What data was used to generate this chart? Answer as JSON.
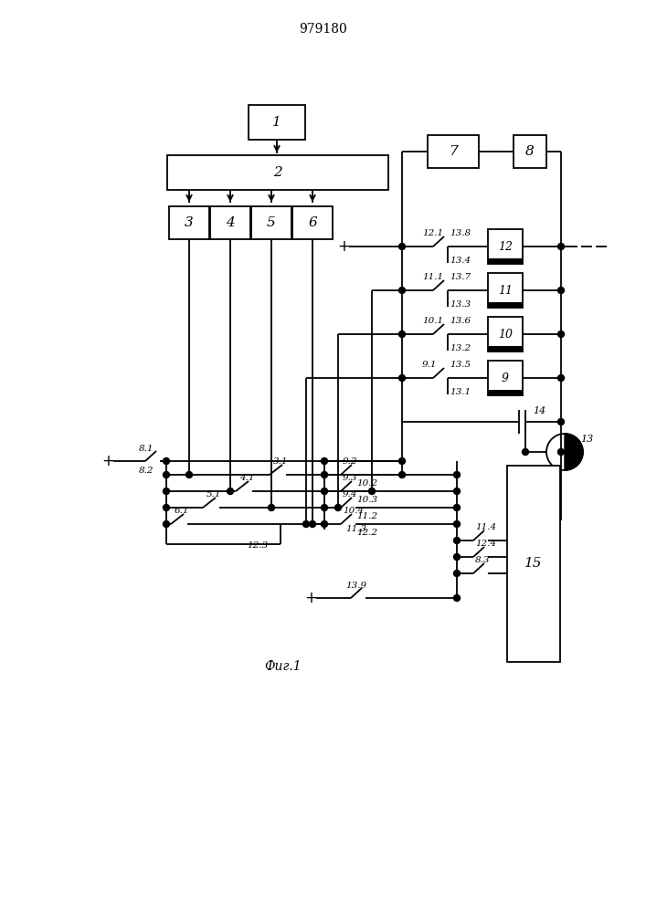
{
  "title": "979180",
  "caption": "Фиг.1",
  "lw": 1.3,
  "fig_w": 7.07,
  "fig_h": 10.0,
  "dpi": 100
}
